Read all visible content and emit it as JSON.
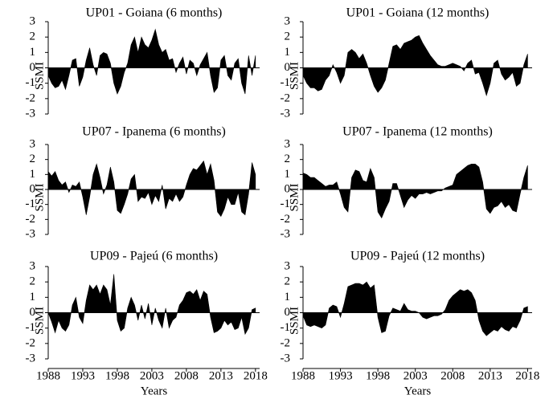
{
  "chart_data": [
    {
      "type": "area",
      "title": "UP01  - Goiana (6 months)",
      "y_label": "SSMI",
      "x": [
        1988,
        1988.5,
        1989,
        1989.5,
        1990,
        1990.5,
        1991,
        1991.5,
        1992,
        1992.5,
        1993,
        1993.5,
        1994,
        1994.5,
        1995,
        1995.5,
        1996,
        1996.5,
        1997,
        1997.5,
        1998,
        1998.5,
        1999,
        1999.5,
        2000,
        2000.5,
        2001,
        2001.5,
        2002,
        2002.5,
        2003,
        2003.5,
        2004,
        2004.5,
        2005,
        2005.5,
        2006,
        2006.5,
        2007,
        2007.5,
        2008,
        2008.5,
        2009,
        2009.5,
        2010,
        2010.5,
        2011,
        2011.5,
        2012,
        2012.5,
        2013,
        2013.5,
        2014,
        2014.5,
        2015,
        2015.5,
        2016,
        2016.5,
        2017,
        2017.5,
        2018
      ],
      "values": [
        -0.5,
        -1,
        -1.3,
        -1.2,
        -0.8,
        -1.4,
        -0.5,
        0.5,
        0.6,
        -1.2,
        -0.6,
        0.5,
        1.3,
        0.2,
        -0.5,
        0.8,
        1.0,
        0.9,
        0.3,
        -1.0,
        -1.7,
        -1.2,
        -0.3,
        0.3,
        1.5,
        2.0,
        1.0,
        2.0,
        1.5,
        1.3,
        1.8,
        2.5,
        1.5,
        1.0,
        1.2,
        0.5,
        0.6,
        -0.3,
        0.3,
        0.7,
        -0.4,
        0.5,
        0.3,
        -0.5,
        0.2,
        0.6,
        1.0,
        -0.5,
        -1.6,
        -1.3,
        0.5,
        0.8,
        -0.5,
        -0.8,
        0.3,
        0.6,
        -1.0,
        -1.7,
        0.8,
        -0.5,
        0.8
      ],
      "color": "#000000",
      "xlim": [
        1988,
        2018.6
      ],
      "ylim": [
        -3,
        3
      ],
      "yticks": [
        -3,
        -2,
        -1,
        0,
        1,
        2,
        3
      ]
    },
    {
      "type": "area",
      "title": "UP01  - Goiana (12 months)",
      "y_label": "SSMI",
      "x": [
        1988,
        1988.5,
        1989,
        1989.5,
        1990,
        1990.5,
        1991,
        1991.5,
        1992,
        1992.5,
        1993,
        1993.5,
        1994,
        1994.5,
        1995,
        1995.5,
        1996,
        1996.5,
        1997,
        1997.5,
        1998,
        1998.5,
        1999,
        1999.5,
        2000,
        2000.5,
        2001,
        2001.5,
        2002,
        2002.5,
        2003,
        2003.5,
        2004,
        2004.5,
        2005,
        2005.5,
        2006,
        2006.5,
        2007,
        2007.5,
        2008,
        2008.5,
        2009,
        2009.5,
        2010,
        2010.5,
        2011,
        2011.5,
        2012,
        2012.5,
        2013,
        2013.5,
        2014,
        2014.5,
        2015,
        2015.5,
        2016,
        2016.5,
        2017,
        2017.5,
        2018
      ],
      "values": [
        -0.5,
        -1,
        -1.3,
        -1.3,
        -1.5,
        -1.4,
        -0.8,
        -0.5,
        0.2,
        -0.3,
        -1.0,
        -0.5,
        1.0,
        1.2,
        1.0,
        0.6,
        0.9,
        0.3,
        -0.5,
        -1.2,
        -1.6,
        -1.3,
        -0.8,
        0.3,
        1.4,
        1.5,
        1.2,
        1.6,
        1.7,
        1.8,
        2.0,
        2.1,
        1.6,
        1.2,
        0.8,
        0.5,
        0.2,
        0.1,
        0.1,
        0.2,
        0.3,
        0.2,
        0.1,
        -0.2,
        0.3,
        0.5,
        -0.4,
        -0.3,
        -1.0,
        -1.8,
        -1.0,
        0.3,
        0.5,
        -0.4,
        -0.8,
        -0.6,
        -0.3,
        -1.2,
        -1.0,
        0.2,
        0.9
      ],
      "color": "#000000",
      "xlim": [
        1988,
        2018.6
      ],
      "ylim": [
        -3,
        3
      ],
      "yticks": [
        -3,
        -2,
        -1,
        0,
        1,
        2,
        3
      ]
    },
    {
      "type": "area",
      "title": "UP07  - Ipanema (6 months)",
      "y_label": "SSMI",
      "x": [
        1988,
        1988.5,
        1989,
        1989.5,
        1990,
        1990.5,
        1991,
        1991.5,
        1992,
        1992.5,
        1993,
        1993.5,
        1994,
        1994.5,
        1995,
        1995.5,
        1996,
        1996.5,
        1997,
        1997.5,
        1998,
        1998.5,
        1999,
        1999.5,
        2000,
        2000.5,
        2001,
        2001.5,
        2002,
        2002.5,
        2003,
        2003.5,
        2004,
        2004.5,
        2005,
        2005.5,
        2006,
        2006.5,
        2007,
        2007.5,
        2008,
        2008.5,
        2009,
        2009.5,
        2010,
        2010.5,
        2011,
        2011.5,
        2012,
        2012.5,
        2013,
        2013.5,
        2014,
        2014.5,
        2015,
        2015.5,
        2016,
        2016.5,
        2017,
        2017.5,
        2018
      ],
      "values": [
        1.2,
        0.9,
        1.2,
        0.6,
        0.3,
        0.5,
        -0.2,
        0.3,
        0.2,
        0.5,
        -0.5,
        -1.7,
        -0.5,
        1.0,
        1.7,
        0.8,
        -0.3,
        0.3,
        1.5,
        0.5,
        -1.4,
        -1.6,
        -1.0,
        -0.3,
        0.7,
        1.0,
        -0.8,
        -0.5,
        -0.6,
        -0.2,
        -1.0,
        -0.4,
        -0.8,
        0.3,
        -1.3,
        -0.6,
        -0.8,
        -0.3,
        -0.8,
        -0.5,
        0.3,
        1.0,
        1.4,
        1.3,
        1.6,
        1.9,
        1.0,
        1.7,
        0.6,
        -1.5,
        -1.8,
        -1.3,
        -0.5,
        -1.0,
        -1.0,
        -0.2,
        -1.5,
        -1.7,
        -0.3,
        1.8,
        1.0
      ],
      "color": "#000000",
      "xlim": [
        1988,
        2018.6
      ],
      "ylim": [
        -3,
        3
      ],
      "yticks": [
        -3,
        -2,
        -1,
        0,
        1,
        2,
        3
      ]
    },
    {
      "type": "area",
      "title": "UP07  - Ipanema (12 months)",
      "y_label": "SSMI",
      "x": [
        1988,
        1988.5,
        1989,
        1989.5,
        1990,
        1990.5,
        1991,
        1991.5,
        1992,
        1992.5,
        1993,
        1993.5,
        1994,
        1994.5,
        1995,
        1995.5,
        1996,
        1996.5,
        1997,
        1997.5,
        1998,
        1998.5,
        1999,
        1999.5,
        2000,
        2000.5,
        2001,
        2001.5,
        2002,
        2002.5,
        2003,
        2003.5,
        2004,
        2004.5,
        2005,
        2005.5,
        2006,
        2006.5,
        2007,
        2007.5,
        2008,
        2008.5,
        2009,
        2009.5,
        2010,
        2010.5,
        2011,
        2011.5,
        2012,
        2012.5,
        2013,
        2013.5,
        2014,
        2014.5,
        2015,
        2015.5,
        2016,
        2016.5,
        2017,
        2017.5,
        2018
      ],
      "values": [
        1.1,
        1.0,
        0.8,
        0.8,
        0.6,
        0.4,
        0.2,
        0.3,
        0.3,
        0.5,
        -0.3,
        -1.2,
        -1.5,
        0.8,
        1.3,
        1.2,
        0.6,
        0.5,
        1.4,
        0.8,
        -1.5,
        -1.9,
        -1.3,
        -0.8,
        0.4,
        0.4,
        -0.4,
        -1.2,
        -0.7,
        -0.4,
        -0.6,
        -0.3,
        -0.3,
        -0.2,
        -0.3,
        -0.2,
        -0.1,
        -0.1,
        0.1,
        0.2,
        0.3,
        1.0,
        1.2,
        1.4,
        1.6,
        1.7,
        1.7,
        1.5,
        0.5,
        -1.3,
        -1.6,
        -1.2,
        -1.1,
        -0.8,
        -1.2,
        -1.0,
        -1.4,
        -1.5,
        -0.3,
        0.8,
        1.6
      ],
      "color": "#000000",
      "xlim": [
        1988,
        2018.6
      ],
      "ylim": [
        -3,
        3
      ],
      "yticks": [
        -3,
        -2,
        -1,
        0,
        1,
        2,
        3
      ]
    },
    {
      "type": "area",
      "title": "UP09  - Pajeú (6 months)",
      "y_label": "SSMI",
      "x_label": "Years",
      "x": [
        1988,
        1988.5,
        1989,
        1989.5,
        1990,
        1990.5,
        1991,
        1991.5,
        1992,
        1992.5,
        1993,
        1993.5,
        1994,
        1994.5,
        1995,
        1995.5,
        1996,
        1996.5,
        1997,
        1997.5,
        1998,
        1998.5,
        1999,
        1999.5,
        2000,
        2000.5,
        2001,
        2001.5,
        2002,
        2002.5,
        2003,
        2003.5,
        2004,
        2004.5,
        2005,
        2005.5,
        2006,
        2006.5,
        2007,
        2007.5,
        2008,
        2008.5,
        2009,
        2009.5,
        2010,
        2010.5,
        2011,
        2011.5,
        2012,
        2012.5,
        2013,
        2013.5,
        2014,
        2014.5,
        2015,
        2015.5,
        2016,
        2016.5,
        2017,
        2017.5,
        2018
      ],
      "values": [
        0,
        -0.6,
        -1.3,
        -0.5,
        -1.0,
        -1.2,
        -0.8,
        0.5,
        1.0,
        -0.3,
        -0.7,
        0.8,
        1.8,
        1.5,
        1.8,
        1.2,
        1.8,
        1.5,
        0.5,
        2.5,
        -0.5,
        -1.2,
        -1.0,
        0.3,
        1.0,
        0.5,
        -0.5,
        0.5,
        -0.4,
        0.6,
        -0.8,
        0.3,
        -0.5,
        -1.0,
        0.3,
        -1.0,
        -0.5,
        -0.3,
        0.5,
        0.8,
        1.3,
        1.4,
        1.2,
        1.5,
        0.8,
        1.4,
        1.2,
        -0.3,
        -1.3,
        -1.2,
        -1.0,
        -0.5,
        -0.8,
        -0.6,
        -1.1,
        -1.0,
        -0.3,
        -1.4,
        -1.0,
        0.2,
        0.3
      ],
      "color": "#000000",
      "xlim": [
        1988,
        2018.6
      ],
      "xticks": [
        1988,
        1993,
        1998,
        2003,
        2008,
        2013,
        2018
      ],
      "ylim": [
        -3,
        3
      ],
      "yticks": [
        -3,
        -2,
        -1,
        0,
        1,
        2,
        3
      ]
    },
    {
      "type": "area",
      "title": "UP09  - Pajeú (12 months)",
      "y_label": "SSMI",
      "x_label": "Years",
      "x": [
        1988,
        1988.5,
        1989,
        1989.5,
        1990,
        1990.5,
        1991,
        1991.5,
        1992,
        1992.5,
        1993,
        1993.5,
        1994,
        1994.5,
        1995,
        1995.5,
        1996,
        1996.5,
        1997,
        1997.5,
        1998,
        1998.5,
        1999,
        1999.5,
        2000,
        2000.5,
        2001,
        2001.5,
        2002,
        2002.5,
        2003,
        2003.5,
        2004,
        2004.5,
        2005,
        2005.5,
        2006,
        2006.5,
        2007,
        2007.5,
        2008,
        2008.5,
        2009,
        2009.5,
        2010,
        2010.5,
        2011,
        2011.5,
        2012,
        2012.5,
        2013,
        2013.5,
        2014,
        2014.5,
        2015,
        2015.5,
        2016,
        2016.5,
        2017,
        2017.5,
        2018
      ],
      "values": [
        -0.2,
        -0.8,
        -0.9,
        -0.8,
        -0.9,
        -1.0,
        -0.8,
        0.3,
        0.5,
        0.4,
        -0.3,
        0.6,
        1.7,
        1.8,
        1.9,
        1.9,
        1.8,
        2.0,
        1.6,
        1.8,
        -0.3,
        -1.3,
        -1.2,
        -0.2,
        0.3,
        0.2,
        0.1,
        0.6,
        0.2,
        0.1,
        0.1,
        0.0,
        -0.3,
        -0.4,
        -0.3,
        -0.2,
        -0.2,
        -0.1,
        0.2,
        0.8,
        1.1,
        1.3,
        1.5,
        1.4,
        1.5,
        1.3,
        0.8,
        -0.5,
        -1.2,
        -1.5,
        -1.3,
        -1.1,
        -1.2,
        -0.9,
        -1.1,
        -1.2,
        -0.9,
        -1.0,
        -0.5,
        0.3,
        0.4
      ],
      "color": "#000000",
      "xlim": [
        1988,
        2018.6
      ],
      "xticks": [
        1988,
        1993,
        1998,
        2003,
        2008,
        2013,
        2018
      ],
      "ylim": [
        -3,
        3
      ],
      "yticks": [
        -3,
        -2,
        -1,
        0,
        1,
        2,
        3
      ]
    }
  ]
}
